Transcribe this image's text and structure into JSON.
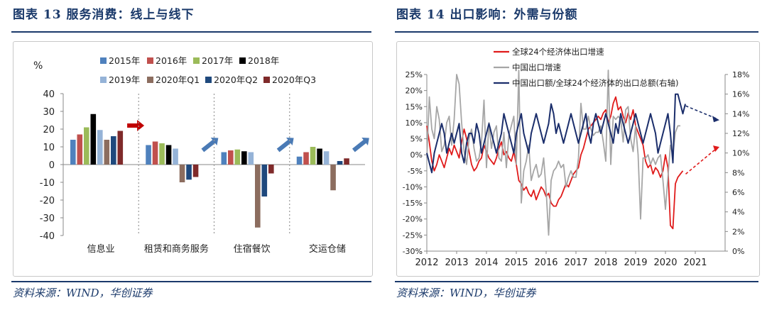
{
  "left": {
    "title": "图表 13   服务消费：线上与线下",
    "source": "资料来源：WIND，华创证券",
    "chart_data": {
      "type": "bar",
      "ylabel": "%",
      "ylim": [
        -40,
        40
      ],
      "yticks": [
        40,
        30,
        20,
        10,
        0,
        -10,
        -20,
        -30,
        -40
      ],
      "categories": [
        "信息业",
        "租赁和商务服务",
        "住宿餐饮",
        "交运仓储"
      ],
      "series": [
        {
          "name": "2015年",
          "color": "#4f81bd",
          "values": [
            14,
            11,
            7,
            4.5
          ]
        },
        {
          "name": "2016年",
          "color": "#c0504d",
          "values": [
            17,
            13,
            8,
            7
          ]
        },
        {
          "name": "2017年",
          "color": "#9bbb59",
          "values": [
            21,
            12,
            8.5,
            10
          ]
        },
        {
          "name": "2018年",
          "color": "#000000",
          "values": [
            28.5,
            11,
            7.5,
            9
          ]
        },
        {
          "name": "2019年",
          "color": "#95b3d7",
          "values": [
            19.5,
            9,
            7,
            7.5
          ]
        },
        {
          "name": "2020年Q1",
          "color": "#8c6d5f",
          "values": [
            14,
            -10,
            -35.5,
            -14.5
          ]
        },
        {
          "name": "2020年Q2",
          "color": "#1f497d",
          "values": [
            16,
            -8.5,
            -18,
            2
          ]
        },
        {
          "name": "2020年Q3",
          "color": "#7f2a2a",
          "values": [
            19,
            -7,
            -5,
            3.5
          ]
        }
      ],
      "grid": false,
      "legend": "top"
    }
  },
  "right": {
    "title": "图表 14   出口影响：外需与份额",
    "source": "资料来源：WIND，华创证券",
    "chart_data": {
      "type": "line",
      "x_ticks": [
        "2012",
        "2013",
        "2014",
        "2015",
        "2016",
        "2017",
        "2018",
        "2019",
        "2020",
        "2021"
      ],
      "y_left_ticks": [
        "25%",
        "20%",
        "15%",
        "10%",
        "5%",
        "0%",
        "-5%",
        "-10%",
        "-15%",
        "-20%",
        "-25%",
        "-30%"
      ],
      "y_left_range": [
        -30,
        25
      ],
      "y_right_ticks": [
        "18%",
        "16%",
        "14%",
        "12%",
        "10%",
        "8%",
        "6%",
        "4%",
        "2%",
        "0%"
      ],
      "y_right_range": [
        0,
        18
      ],
      "x_start": "2012-01",
      "series": [
        {
          "name": "全球24个经济体出口增速",
          "color": "#e01b1b",
          "axis": "left",
          "values": [
            9,
            4,
            -2,
            -5,
            -3,
            0,
            -2,
            -4,
            -1,
            2,
            0,
            3,
            1,
            -1,
            4,
            8,
            5,
            1,
            -3,
            -5,
            -4,
            -2,
            -1,
            3,
            1,
            -1,
            -2,
            -3,
            -1,
            2,
            4,
            0,
            1,
            -1,
            -2,
            1,
            -3,
            -8,
            -9,
            -11,
            -10,
            -12,
            -13,
            -11,
            -14,
            -12,
            -10,
            -11,
            -13,
            -12,
            -15,
            -16,
            -16,
            -14,
            -13,
            -11,
            -9,
            -10,
            -8,
            -6,
            -5,
            -4,
            0,
            2,
            5,
            8,
            9,
            10,
            11,
            12,
            11,
            13,
            14,
            10,
            12,
            16,
            18,
            14,
            15,
            12,
            10,
            13,
            11,
            14,
            9,
            7,
            5,
            3,
            -2,
            -4,
            -3,
            -6,
            -4,
            -5,
            -7,
            -5,
            0,
            -4,
            -22,
            -23,
            -9,
            -7,
            -6,
            -5
          ]
        },
        {
          "name": "中国出口增速",
          "color": "#a6a6a6",
          "axis": "left",
          "values": [
            -1,
            18,
            8,
            5,
            15,
            11,
            1,
            3,
            10,
            12,
            3,
            11,
            25,
            22,
            10,
            1,
            -3,
            5,
            8,
            2,
            -2,
            -1,
            4,
            17,
            -4,
            10,
            2,
            7,
            9,
            -1,
            -2,
            7,
            -4,
            6,
            9,
            12,
            -3,
            48,
            -15,
            -5,
            -2,
            3,
            -8,
            -5,
            -3,
            -7,
            -6,
            -1,
            -11,
            -25,
            -8,
            -5,
            -4,
            -2,
            -4,
            -3,
            -10,
            -7,
            -5,
            -7,
            -7,
            -1,
            16,
            8,
            8,
            12,
            8,
            6,
            7,
            7,
            9,
            4,
            -2,
            44,
            -3,
            12,
            11,
            12,
            11,
            4,
            14,
            15,
            5,
            1,
            9,
            0,
            -20,
            -1,
            -1,
            0,
            -3,
            -1,
            -3,
            -1,
            0,
            -8,
            -17,
            -7,
            3,
            0,
            7,
            9,
            9
          ]
        },
        {
          "name": "中国出口额/全球24个经济体的出口总额(右轴)",
          "color": "#1b2e6b",
          "axis": "right",
          "values": [
            10,
            9,
            8,
            10,
            11,
            12,
            13,
            12,
            10,
            11,
            12,
            11,
            12,
            13,
            10,
            9,
            11,
            12,
            12,
            11,
            13,
            12,
            10,
            11,
            12,
            13,
            12,
            11,
            10,
            11,
            12,
            14,
            13,
            12,
            11,
            10,
            12,
            13,
            14,
            12,
            11,
            10,
            12,
            13,
            14,
            13,
            12,
            11,
            12,
            13,
            15,
            14,
            12,
            13,
            12,
            11,
            12,
            13,
            14,
            13,
            12,
            11,
            12,
            13,
            14,
            12,
            11,
            13,
            14,
            13,
            12,
            13,
            14,
            13,
            12,
            11,
            13,
            12,
            14,
            13,
            12,
            11,
            12,
            13,
            14,
            13,
            12,
            11,
            12,
            13,
            14,
            13,
            12,
            10,
            11,
            12,
            13,
            14,
            12,
            9,
            16,
            16,
            15,
            14,
            15
          ]
        }
      ],
      "legend": "top-left"
    }
  }
}
